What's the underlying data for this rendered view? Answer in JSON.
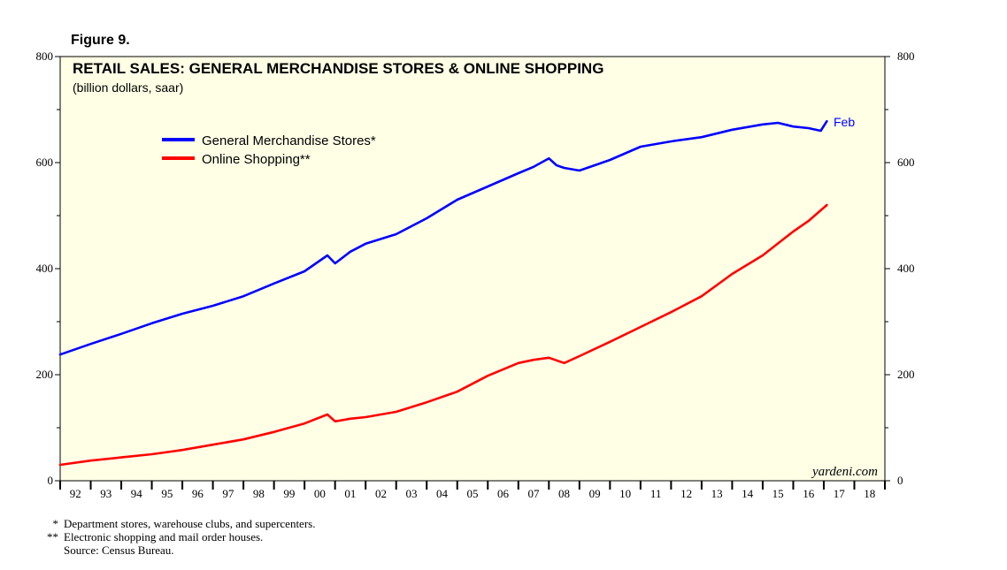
{
  "figure_label": "Figure 9.",
  "chart_data": {
    "type": "line",
    "title": "RETAIL SALES: GENERAL MERCHANDISE STORES & ONLINE SHOPPING",
    "subtitle": "(billion dollars, saar)",
    "xlabel": "",
    "ylabel": "",
    "ylim": [
      0,
      800
    ],
    "yticks": [
      0,
      200,
      400,
      600,
      800
    ],
    "ytick_labels": [
      "0",
      "200",
      "400",
      "600",
      "800"
    ],
    "xlim": [
      1992,
      2019
    ],
    "x_tick_labels": [
      "92",
      "93",
      "94",
      "95",
      "96",
      "97",
      "98",
      "99",
      "00",
      "01",
      "02",
      "03",
      "04",
      "05",
      "06",
      "07",
      "08",
      "09",
      "10",
      "11",
      "12",
      "13",
      "14",
      "15",
      "16",
      "17",
      "18"
    ],
    "legend_position": "upper-left",
    "end_label": "Feb",
    "watermark": "yardeni.com",
    "series": [
      {
        "name": "General Merchandise Stores*",
        "color": "#0000ff",
        "x": [
          1992,
          1993,
          1994,
          1995,
          1996,
          1997,
          1998,
          1999,
          2000,
          2000.75,
          2001.0,
          2001.5,
          2002,
          2003,
          2004,
          2005,
          2006,
          2007,
          2007.5,
          2008.0,
          2008.25,
          2008.5,
          2009,
          2009.5,
          2010,
          2011,
          2012,
          2013,
          2014,
          2015,
          2015.5,
          2016,
          2016.5,
          2016.9,
          2017.1
        ],
        "y": [
          238,
          258,
          277,
          297,
          315,
          330,
          348,
          372,
          395,
          425,
          410,
          432,
          447,
          465,
          495,
          530,
          555,
          580,
          592,
          608,
          595,
          590,
          585,
          595,
          605,
          630,
          640,
          648,
          662,
          672,
          675,
          668,
          665,
          660,
          678
        ]
      },
      {
        "name": "Online Shopping**",
        "color": "#ff0000",
        "x": [
          1992,
          1993,
          1994,
          1995,
          1996,
          1997,
          1998,
          1999,
          2000,
          2000.75,
          2001.0,
          2001.5,
          2002,
          2003,
          2004,
          2005,
          2006,
          2007,
          2007.5,
          2008.0,
          2008.5,
          2009,
          2010,
          2011,
          2012,
          2013,
          2014,
          2015,
          2016,
          2016.5,
          2017.1
        ],
        "y": [
          30,
          38,
          44,
          50,
          58,
          68,
          78,
          92,
          108,
          125,
          112,
          117,
          120,
          130,
          148,
          168,
          198,
          222,
          228,
          232,
          222,
          235,
          262,
          290,
          318,
          348,
          390,
          425,
          470,
          490,
          520
        ]
      }
    ]
  },
  "footnotes": [
    {
      "marker": "*",
      "text": "Department stores, warehouse clubs, and supercenters."
    },
    {
      "marker": "**",
      "text": "Electronic shopping and mail order houses."
    },
    {
      "marker": "",
      "text": "Source: Census Bureau."
    }
  ]
}
